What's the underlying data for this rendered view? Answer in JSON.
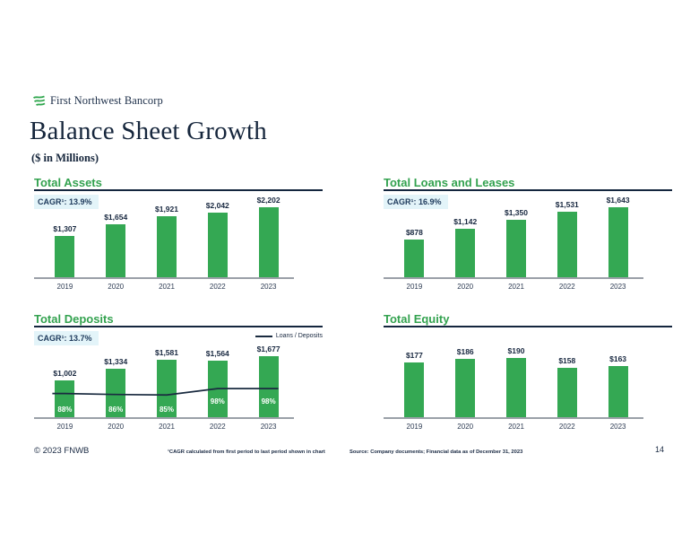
{
  "header": {
    "company": "First Northwest Bancorp",
    "title": "Balance Sheet Growth",
    "subtitle": "($ in Millions)"
  },
  "icons": {
    "logo": "triple-wave-icon"
  },
  "colors": {
    "bar_green": "#34A853",
    "title_green": "#33A24F",
    "navy_text": "#17273F",
    "cagr_badge_bg": "#E3F4F9",
    "underline": "#14263E",
    "axis_gray": "#9AA0A8",
    "ratio_line": "#1A2B40"
  },
  "chart_data": [
    {
      "type": "bar",
      "title": "Total Assets",
      "cagr_label": "CAGR¹: 13.9%",
      "categories": [
        "2019",
        "2020",
        "2021",
        "2022",
        "2023"
      ],
      "values": [
        1307,
        1654,
        1921,
        2042,
        2202
      ],
      "value_labels": [
        "$1,307",
        "$1,654",
        "$1,921",
        "$2,042",
        "$2,202"
      ],
      "ylim": [
        0,
        2202
      ],
      "y_axis_visible": false,
      "grid": false
    },
    {
      "type": "bar",
      "title": "Total Loans and Leases",
      "cagr_label": "CAGR¹: 16.9%",
      "categories": [
        "2019",
        "2020",
        "2021",
        "2022",
        "2023"
      ],
      "values": [
        878,
        1142,
        1350,
        1531,
        1643
      ],
      "value_labels": [
        "$878",
        "$1,142",
        "$1,350",
        "$1,531",
        "$1,643"
      ],
      "ylim": [
        0,
        1643
      ],
      "y_axis_visible": false,
      "grid": false
    },
    {
      "type": "bar+line",
      "title": "Total Deposits",
      "cagr_label": "CAGR¹: 13.7%",
      "categories": [
        "2019",
        "2020",
        "2021",
        "2022",
        "2023"
      ],
      "values": [
        1002,
        1334,
        1581,
        1564,
        1677
      ],
      "value_labels": [
        "$1,002",
        "$1,334",
        "$1,581",
        "$1,564",
        "$1,677"
      ],
      "line_series": {
        "name": "Loans / Deposits",
        "values_pct": [
          88,
          86,
          85,
          98,
          98
        ],
        "labels": [
          "88%",
          "86%",
          "85%",
          "98%",
          "98%"
        ]
      },
      "legend": "Loans / Deposits",
      "legend_position": "top-right",
      "ylim": [
        0,
        1677
      ],
      "y_axis_visible": false,
      "grid": false
    },
    {
      "type": "bar",
      "title": "Total Equity",
      "categories": [
        "2019",
        "2020",
        "2021",
        "2022",
        "2023"
      ],
      "values": [
        177,
        186,
        190,
        158,
        163
      ],
      "value_labels": [
        "$177",
        "$186",
        "$190",
        "$158",
        "$163"
      ],
      "ylim": [
        0,
        190
      ],
      "y_axis_visible": false,
      "grid": false
    }
  ],
  "footer": {
    "copyright": "© 2023 FNWB",
    "footnote": "¹CAGR calculated from first period to last period shown in chart",
    "source": "Source: Company documents; Financial data as of December 31, 2023",
    "page_number": "14"
  }
}
